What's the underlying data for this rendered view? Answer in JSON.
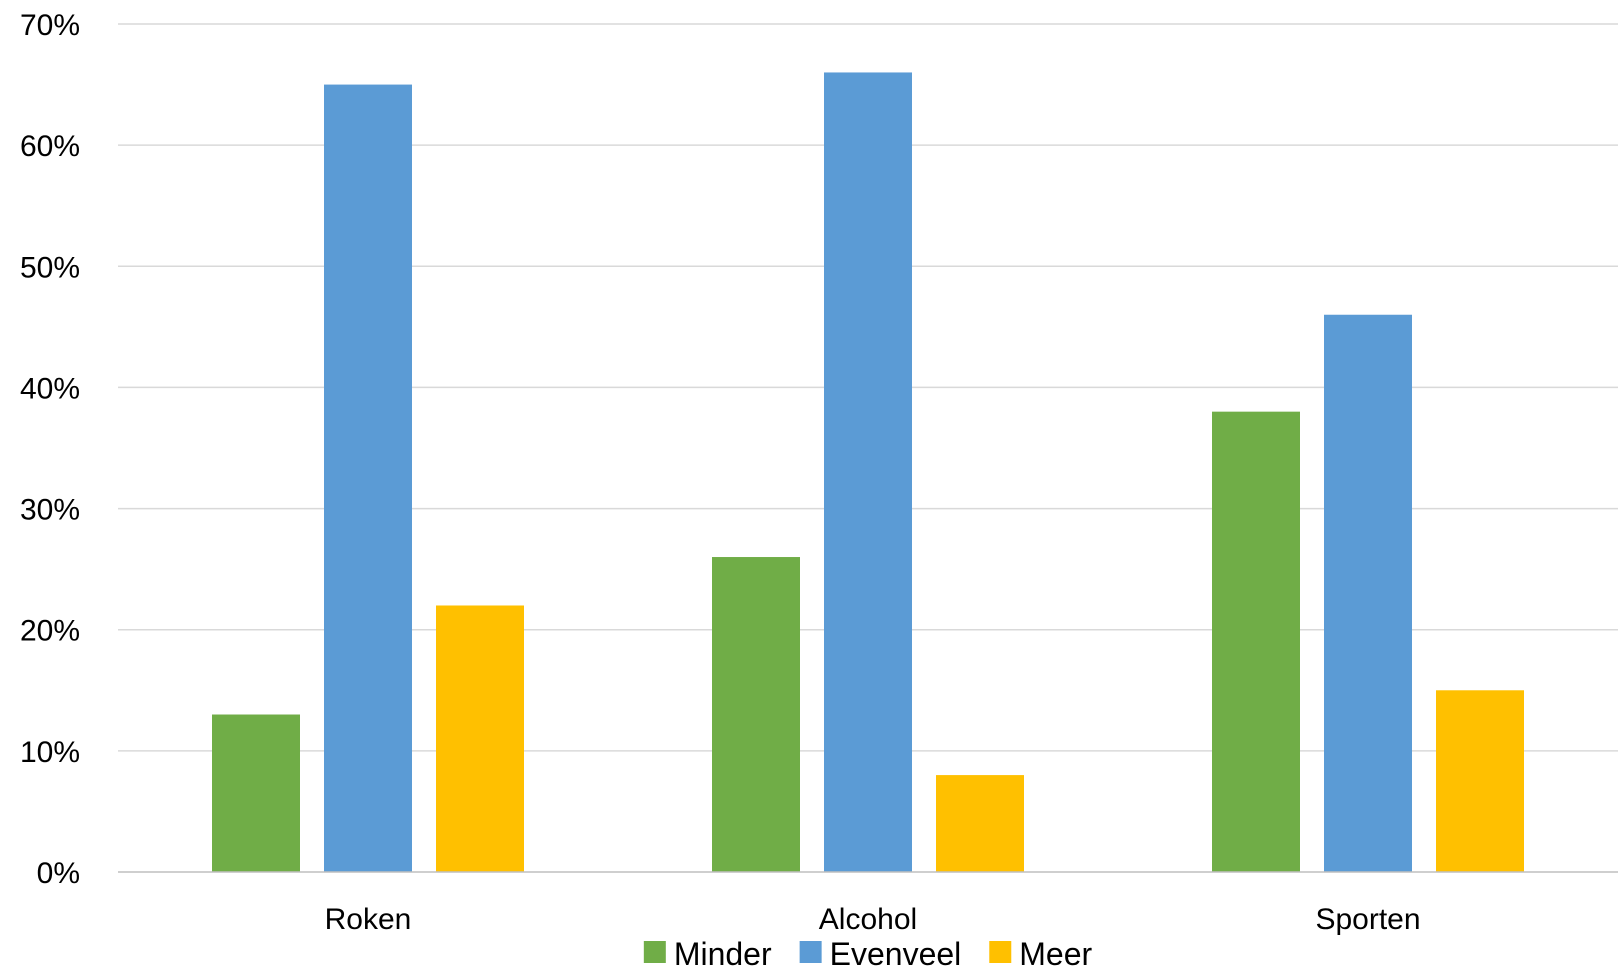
{
  "chart_data": {
    "type": "bar",
    "title": "",
    "xlabel": "",
    "ylabel": "",
    "categories": [
      "Roken",
      "Alcohol",
      "Sporten"
    ],
    "series": [
      {
        "name": "Minder",
        "color": "#70AD47",
        "values": [
          13,
          26,
          38
        ]
      },
      {
        "name": "Evenveel",
        "color": "#5B9BD5",
        "values": [
          65,
          66,
          46
        ]
      },
      {
        "name": "Meer",
        "color": "#FFC000",
        "values": [
          22,
          8,
          15
        ]
      }
    ],
    "ylim": [
      0,
      70
    ],
    "yticks": [
      0,
      10,
      20,
      30,
      40,
      50,
      60,
      70
    ],
    "ytick_labels": [
      "0%",
      "10%",
      "20%",
      "30%",
      "40%",
      "50%",
      "60%",
      "70%"
    ],
    "grid": true,
    "legend_position": "bottom"
  }
}
